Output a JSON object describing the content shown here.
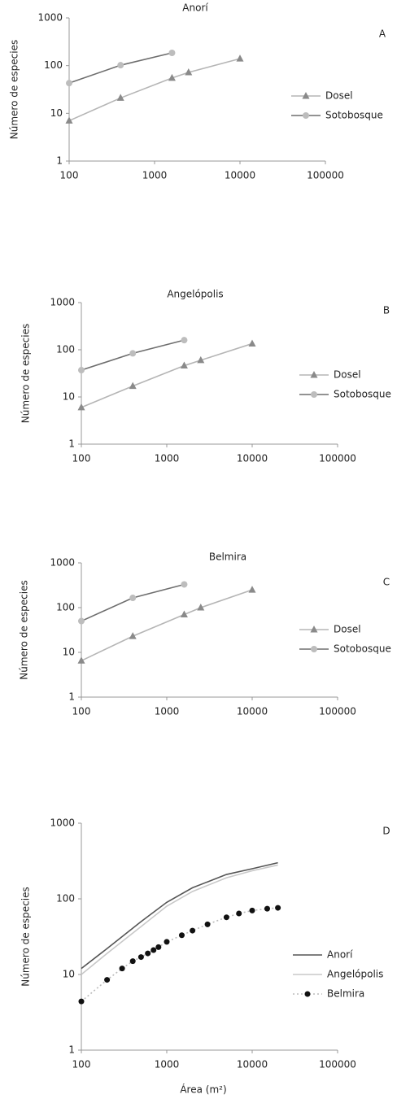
{
  "chart_data": [
    {
      "type": "line",
      "title": "Anorí",
      "panel": "A",
      "ylabel": "Número de especies",
      "xscale": "log",
      "yscale": "log",
      "xlim": [
        100,
        100000
      ],
      "xticks": [
        100,
        1000,
        10000,
        100000
      ],
      "ylim": [
        1,
        1000
      ],
      "yticks": [
        1,
        10,
        100,
        1000
      ],
      "legend": "right",
      "series": [
        {
          "name": "Dosel",
          "color": "#b5b5b5",
          "marker": "triangle",
          "marker_color": "#8a8a8a",
          "x": [
            100,
            400,
            1600,
            2500,
            10000
          ],
          "values": [
            7,
            21,
            55,
            72,
            140
          ]
        },
        {
          "name": "Sotobosque",
          "color": "#6e6e6e",
          "marker": "circle",
          "marker_color": "#bdbdbd",
          "x": [
            100,
            400,
            1600
          ],
          "values": [
            43,
            102,
            185
          ]
        }
      ]
    },
    {
      "type": "line",
      "title": "Angelópolis",
      "panel": "B",
      "ylabel": "Número de especies",
      "xscale": "log",
      "yscale": "log",
      "xlim": [
        100,
        100000
      ],
      "xticks": [
        100,
        1000,
        10000,
        100000
      ],
      "ylim": [
        1,
        1000
      ],
      "yticks": [
        1,
        10,
        100,
        1000
      ],
      "legend": "right",
      "series": [
        {
          "name": "Dosel",
          "color": "#b5b5b5",
          "marker": "triangle",
          "marker_color": "#8a8a8a",
          "x": [
            100,
            400,
            1600,
            2500,
            10000
          ],
          "values": [
            6,
            17,
            46,
            60,
            135
          ]
        },
        {
          "name": "Sotobosque",
          "color": "#6e6e6e",
          "marker": "circle",
          "marker_color": "#bdbdbd",
          "x": [
            100,
            400,
            1600
          ],
          "values": [
            37,
            84,
            160
          ]
        }
      ]
    },
    {
      "type": "line",
      "title": "Belmira",
      "panel": "C",
      "ylabel": "Número de especies",
      "xscale": "log",
      "yscale": "log",
      "xlim": [
        100,
        100000
      ],
      "xticks": [
        100,
        1000,
        10000,
        100000
      ],
      "ylim": [
        1,
        1000
      ],
      "yticks": [
        1,
        10,
        100,
        1000
      ],
      "legend": "right",
      "series": [
        {
          "name": "Dosel",
          "color": "#b5b5b5",
          "marker": "triangle",
          "marker_color": "#8a8a8a",
          "x": [
            100,
            400,
            1600,
            2500,
            10000
          ],
          "values": [
            6.5,
            23,
            70,
            100,
            250
          ]
        },
        {
          "name": "Sotobosque",
          "color": "#6e6e6e",
          "marker": "circle",
          "marker_color": "#bdbdbd",
          "x": [
            100,
            400,
            1600
          ],
          "values": [
            50,
            165,
            330
          ]
        }
      ]
    },
    {
      "type": "line",
      "panel": "D",
      "ylabel": "Número de especies",
      "xlabel": "Área (m²)",
      "xscale": "log",
      "yscale": "log",
      "xlim": [
        100,
        100000
      ],
      "xticks": [
        100,
        1000,
        10000,
        100000
      ],
      "ylim": [
        1,
        1000
      ],
      "yticks": [
        1,
        10,
        100,
        1000
      ],
      "legend": "right",
      "series": [
        {
          "name": "Anorí",
          "color": "#555555",
          "marker": "none",
          "x": [
            100,
            200,
            500,
            1000,
            2000,
            5000,
            10000,
            20000
          ],
          "values": [
            12,
            22,
            50,
            90,
            140,
            210,
            250,
            300
          ]
        },
        {
          "name": "Angelópolis",
          "color": "#c8c8c8",
          "marker": "none",
          "x": [
            100,
            200,
            500,
            1000,
            2000,
            5000,
            10000,
            20000
          ],
          "values": [
            10,
            19,
            43,
            80,
            125,
            190,
            235,
            280
          ]
        },
        {
          "name": "Belmira",
          "color": "#bbbbbb",
          "line_style": "dotted",
          "marker": "dot",
          "marker_color": "#111111",
          "x": [
            100,
            200,
            300,
            400,
            500,
            600,
            700,
            800,
            1000,
            1500,
            2000,
            3000,
            5000,
            7000,
            10000,
            15000,
            20000
          ],
          "values": [
            4.4,
            8.5,
            12,
            15,
            17,
            19,
            21,
            23,
            27,
            33,
            38,
            46,
            57,
            64,
            70,
            74,
            76
          ]
        }
      ]
    }
  ]
}
